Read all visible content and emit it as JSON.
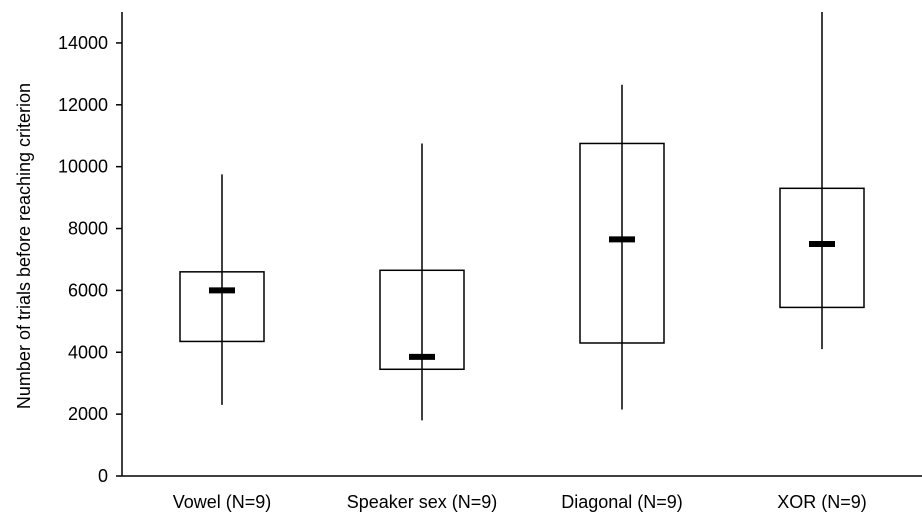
{
  "chart_data": {
    "type": "box",
    "title": "",
    "xlabel": "",
    "ylabel": "Number of trials before reaching criterion",
    "ylim": [
      0,
      15000
    ],
    "yticks": [
      0,
      2000,
      4000,
      6000,
      8000,
      10000,
      12000,
      14000
    ],
    "grid": false,
    "categories": [
      "Vowel (N=9)",
      "Speaker sex (N=9)",
      "Diagonal (N=9)",
      "XOR (N=9)"
    ],
    "series": [
      {
        "boxes": [
          {
            "min": 2300,
            "q1": 4350,
            "median": 6000,
            "q3": 6600,
            "max": 9750
          },
          {
            "min": 1800,
            "q1": 3450,
            "median": 3850,
            "q3": 6650,
            "max": 10750
          },
          {
            "min": 2150,
            "q1": 4300,
            "median": 7650,
            "q3": 10750,
            "max": 12650
          },
          {
            "min": 4100,
            "q1": 5450,
            "median": 7500,
            "q3": 9300,
            "max": 15000
          }
        ]
      }
    ],
    "colors": {
      "stroke": "#000000",
      "fill": "#ffffff"
    }
  }
}
